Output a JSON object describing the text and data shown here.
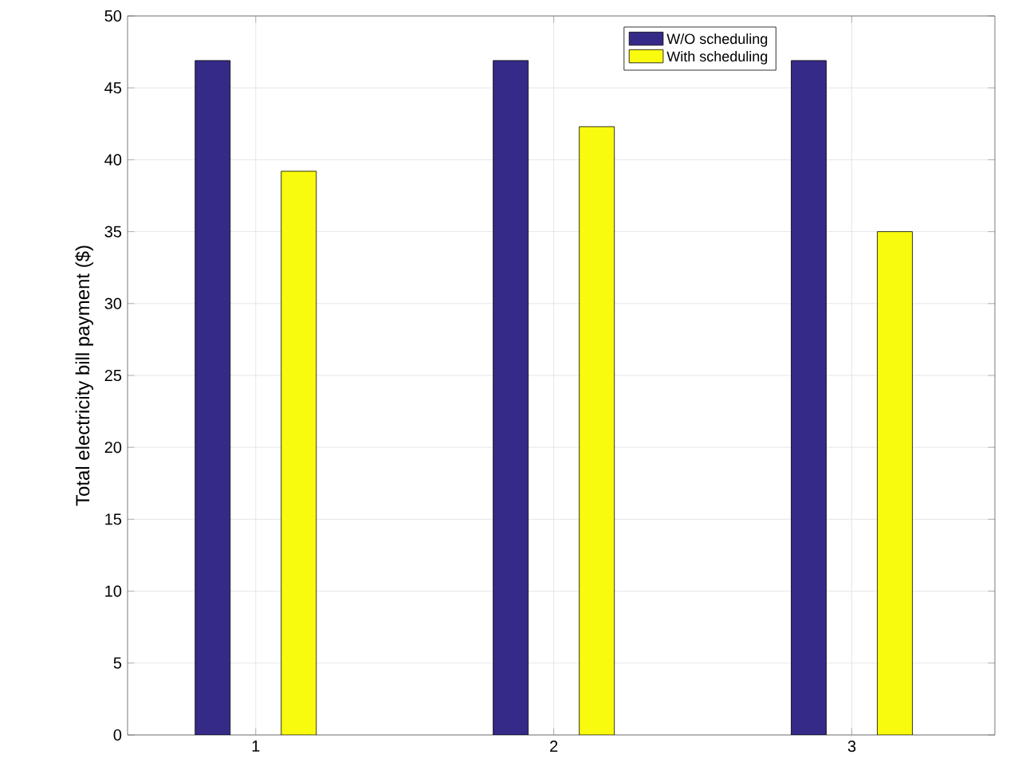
{
  "chart_data": {
    "type": "bar",
    "ylabel": "Total electricity bill payment ($)",
    "x": [
      1,
      2,
      3
    ],
    "series": [
      {
        "name": "W/O scheduling",
        "color": "#352a87",
        "values": [
          46.9,
          46.9,
          46.9
        ]
      },
      {
        "name": "With scheduling",
        "color": "#f9fb0e",
        "values": [
          39.2,
          42.3,
          35.0
        ]
      }
    ],
    "xlim": [
      0.57,
      3.48
    ],
    "ylim": [
      0,
      50
    ],
    "xticks": [
      1,
      2,
      3
    ],
    "yticks": [
      0,
      5,
      10,
      15,
      20,
      25,
      30,
      35,
      40,
      45,
      50
    ],
    "grid": true,
    "legend": "top"
  }
}
